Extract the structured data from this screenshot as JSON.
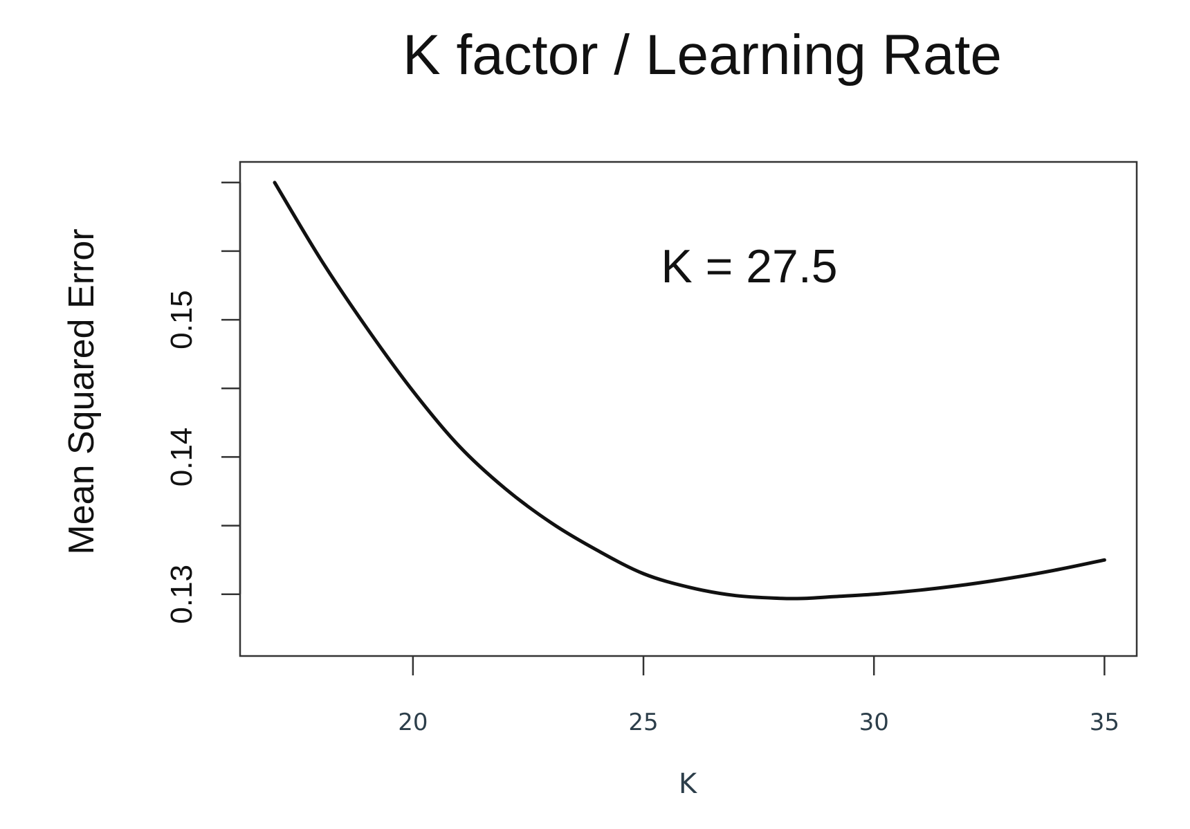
{
  "chart_data": {
    "type": "line",
    "title": "K factor / Learning Rate",
    "xlabel": "K",
    "ylabel": "Mean Squared Error",
    "xlim": [
      16.25,
      35.7
    ],
    "ylim": [
      0.1255,
      0.1615
    ],
    "xticks": [
      20,
      25,
      30,
      35
    ],
    "xtick_labels": [
      "20",
      "25",
      "30",
      "35"
    ],
    "yticks": [
      0.13,
      0.135,
      0.14,
      0.145,
      0.15,
      0.155,
      0.16
    ],
    "ytick_labels": [
      "0.13",
      "",
      "0.14",
      "",
      "0.15",
      "",
      ""
    ],
    "annotation": "K = 27.5",
    "grid": false,
    "legend": "none",
    "colors": {
      "line": "#111111",
      "axis": "#333333"
    },
    "series": [
      {
        "x": [
          17,
          18,
          19,
          20,
          21,
          22,
          23,
          24,
          25,
          26,
          27,
          28,
          28.5,
          29,
          30,
          31,
          32,
          33,
          34,
          35
        ],
        "y": [
          0.16,
          0.1544,
          0.1494,
          0.1448,
          0.1408,
          0.1377,
          0.1352,
          0.1332,
          0.1315,
          0.1305,
          0.1299,
          0.1297,
          0.1297,
          0.1298,
          0.13,
          0.1303,
          0.1307,
          0.1312,
          0.1318,
          0.1325
        ]
      }
    ]
  }
}
